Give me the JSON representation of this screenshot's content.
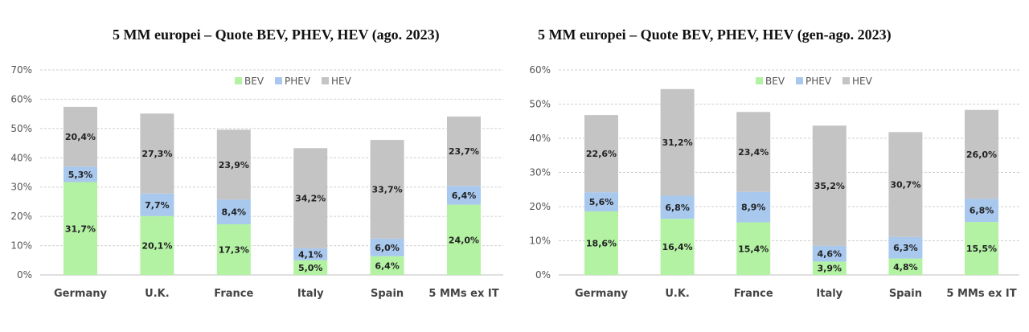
{
  "colors": {
    "BEV": "#b3f2a3",
    "PHEV": "#a8c8ee",
    "HEV": "#c4c4c4",
    "grid": "#cfcfcf",
    "axis": "#bfbfbf"
  },
  "chart_data": [
    {
      "type": "bar",
      "stacked": true,
      "title": "5 MM europei – Quote BEV, PHEV, HEV (ago. 2023)",
      "categories": [
        "Germany",
        "U.K.",
        "France",
        "Italy",
        "Spain",
        "5 MMs ex IT"
      ],
      "ylim": [
        0,
        70
      ],
      "yticks": [
        0,
        10,
        20,
        30,
        40,
        50,
        60,
        70
      ],
      "tick_labels": [
        "0%",
        "10%",
        "20%",
        "30%",
        "40%",
        "50%",
        "60%",
        "70%"
      ],
      "grid": true,
      "legend": "top-center",
      "series": [
        {
          "name": "BEV",
          "values": [
            31.7,
            20.1,
            17.3,
            5.0,
            6.4,
            24.0
          ],
          "labels": [
            "31,7%",
            "20,1%",
            "17,3%",
            "5,0%",
            "6,4%",
            "24,0%"
          ]
        },
        {
          "name": "PHEV",
          "values": [
            5.3,
            7.7,
            8.4,
            4.1,
            6.0,
            6.4
          ],
          "labels": [
            "5,3%",
            "7,7%",
            "8,4%",
            "4,1%",
            "6,0%",
            "6,4%"
          ]
        },
        {
          "name": "HEV",
          "values": [
            20.4,
            27.3,
            23.9,
            34.2,
            33.7,
            23.7
          ],
          "labels": [
            "20,4%",
            "27,3%",
            "23,9%",
            "34,2%",
            "33,7%",
            "23,7%"
          ]
        }
      ]
    },
    {
      "type": "bar",
      "stacked": true,
      "title": "5 MM europei – Quote BEV, PHEV, HEV (gen-ago. 2023)",
      "categories": [
        "Germany",
        "U.K.",
        "France",
        "Italy",
        "Spain",
        "5 MMs ex IT"
      ],
      "ylim": [
        0,
        60
      ],
      "yticks": [
        0,
        10,
        20,
        30,
        40,
        50,
        60
      ],
      "tick_labels": [
        "0%",
        "10%",
        "20%",
        "30%",
        "40%",
        "50%",
        "60%"
      ],
      "grid": true,
      "legend": "top-center",
      "series": [
        {
          "name": "BEV",
          "values": [
            18.6,
            16.4,
            15.4,
            3.9,
            4.8,
            15.5
          ],
          "labels": [
            "18,6%",
            "16,4%",
            "15,4%",
            "3,9%",
            "4,8%",
            "15,5%"
          ]
        },
        {
          "name": "PHEV",
          "values": [
            5.6,
            6.8,
            8.9,
            4.6,
            6.3,
            6.8
          ],
          "labels": [
            "5,6%",
            "6,8%",
            "8,9%",
            "4,6%",
            "6,3%",
            "6,8%"
          ]
        },
        {
          "name": "HEV",
          "values": [
            22.6,
            31.2,
            23.4,
            35.2,
            30.7,
            26.0
          ],
          "labels": [
            "22,6%",
            "31,2%",
            "23,4%",
            "35,2%",
            "30,7%",
            "26,0%"
          ]
        }
      ]
    }
  ]
}
